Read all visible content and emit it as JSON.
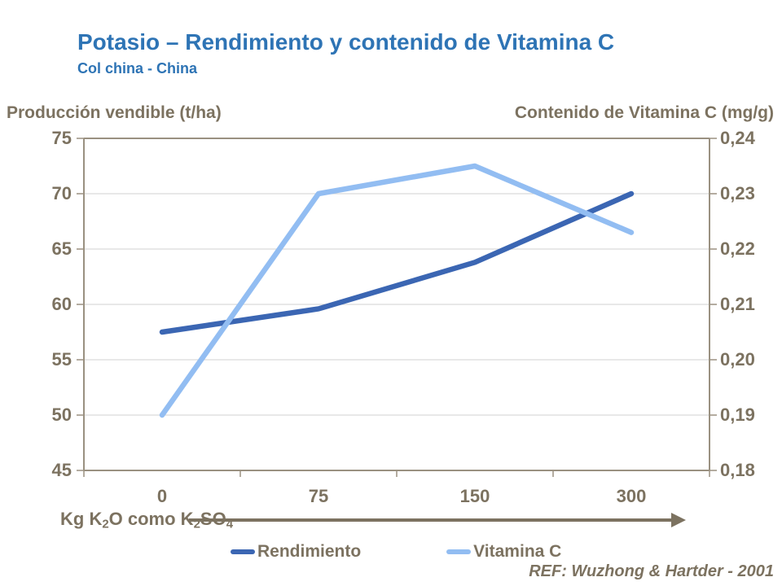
{
  "chart_data": {
    "type": "line",
    "title": "Potasio – Rendimiento y contenido de Vitamina C",
    "subtitle": "Col china - China",
    "categories": [
      "0",
      "75",
      "150",
      "300"
    ],
    "x_axis": {
      "label_parts": [
        {
          "text": "Kg K"
        },
        {
          "text": "2",
          "sub": true
        },
        {
          "text": "O como K"
        },
        {
          "text": "2",
          "sub": true
        },
        {
          "text": "SO"
        },
        {
          "text": "4",
          "sub": true
        }
      ],
      "label_text": "Kg K2O como K2SO4"
    },
    "left_axis": {
      "title": "Producción vendible (t/ha)",
      "min": 45,
      "max": 75,
      "tick_labels": [
        "75",
        "70",
        "65",
        "60",
        "55",
        "50",
        "45"
      ],
      "tick_values": [
        75,
        70,
        65,
        60,
        55,
        50,
        45
      ]
    },
    "right_axis": {
      "title": "Contenido de Vitamina C (mg/g)",
      "min": 0.18,
      "max": 0.24,
      "tick_labels": [
        "0,24",
        "0,23",
        "0,22",
        "0,21",
        "0,20",
        "0,19",
        "0,18"
      ],
      "tick_values": [
        0.24,
        0.23,
        0.22,
        0.21,
        0.2,
        0.19,
        0.18
      ]
    },
    "series": [
      {
        "name": "Rendimiento",
        "axis": "left",
        "color": "#3B66B3",
        "values": [
          57.5,
          59.6,
          63.8,
          70.0
        ]
      },
      {
        "name": "Vitamina C",
        "axis": "right",
        "color": "#92BDF2",
        "values": [
          0.19,
          0.23,
          0.235,
          0.223
        ]
      }
    ],
    "grid": true,
    "legend_position": "bottom",
    "reference": "REF: Wuzhong & Hartder - 2001"
  },
  "style_colors": {
    "title_blue": "#2E74B5",
    "text_brown": "#7C7260",
    "axis_line": "#9A9181",
    "gridline": "#D9D9D9"
  }
}
